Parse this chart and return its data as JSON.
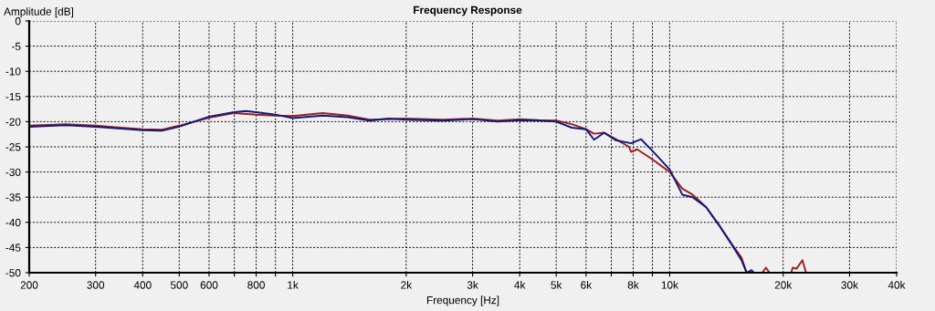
{
  "chart_data": {
    "type": "line",
    "title": "Frequency Response",
    "xlabel": "Frequency [Hz]",
    "ylabel": "Amplitude [dB]",
    "log": "x",
    "grid": true,
    "legend": false,
    "line_style": "solid",
    "marker": "none",
    "xlim": [
      200,
      40000
    ],
    "ylim": [
      -50,
      0
    ],
    "xticks": [
      200,
      300,
      400,
      500,
      600,
      {
        "value": 700,
        "label": null
      },
      800,
      {
        "value": 900,
        "label": null
      },
      {
        "value": 1000,
        "label": "1k"
      },
      {
        "value": 2000,
        "label": "2k"
      },
      {
        "value": 3000,
        "label": "3k"
      },
      {
        "value": 4000,
        "label": "4k"
      },
      {
        "value": 5000,
        "label": "5k"
      },
      {
        "value": 6000,
        "label": "6k"
      },
      {
        "value": 7000,
        "label": null
      },
      {
        "value": 8000,
        "label": "8k"
      },
      {
        "value": 9000,
        "label": null
      },
      {
        "value": 10000,
        "label": "10k"
      },
      {
        "value": 20000,
        "label": "20k"
      },
      {
        "value": 30000,
        "label": "30k"
      },
      {
        "value": 40000,
        "label": "40k"
      }
    ],
    "yticks": [
      0,
      -5,
      -10,
      -15,
      -20,
      -25,
      -30,
      -35,
      -40,
      -45,
      -50
    ],
    "series": [
      {
        "color": "#9b2020",
        "x": [
          200,
          250,
          300,
          350,
          400,
          450,
          500,
          600,
          700,
          800,
          900,
          1000,
          1200,
          1400,
          1600,
          2000,
          2500,
          3000,
          3500,
          4000,
          4500,
          5000,
          5500,
          6000,
          6300,
          6700,
          7200,
          7800,
          7900,
          8200,
          9000,
          10000,
          10800,
          11500,
          12500,
          13500,
          14500,
          15500,
          16000,
          16500,
          17600,
          18000,
          18400,
          20500,
          21000,
          21200,
          21700,
          22500,
          23000
        ],
        "values": [
          -20.8,
          -20.5,
          -20.8,
          -21.2,
          -21.5,
          -21.6,
          -20.8,
          -19.2,
          -18.3,
          -18.6,
          -18.8,
          -18.9,
          -18.3,
          -18.8,
          -19.6,
          -19.4,
          -19.6,
          -19.4,
          -19.8,
          -19.5,
          -19.7,
          -19.8,
          -20.5,
          -21.5,
          -22.4,
          -22.2,
          -23.5,
          -25,
          -26,
          -25.5,
          -27.5,
          -30,
          -33.3,
          -34.5,
          -37,
          -40.5,
          -44,
          -47,
          -50,
          null,
          -50,
          -49,
          -50,
          null,
          -50,
          -49,
          -49.2,
          -47.5,
          -50
        ]
      },
      {
        "color": "#101a7a",
        "x": [
          200,
          250,
          300,
          350,
          400,
          450,
          500,
          600,
          700,
          750,
          800,
          900,
          1000,
          1200,
          1400,
          1600,
          1800,
          2000,
          2500,
          3000,
          3500,
          4000,
          4500,
          5000,
          5500,
          6000,
          6300,
          6700,
          7200,
          7900,
          8400,
          9000,
          10000,
          10800,
          11500,
          12500,
          13500,
          14500,
          15500,
          16000,
          16500,
          16700
        ],
        "values": [
          -21,
          -20.7,
          -21,
          -21.4,
          -21.7,
          -21.8,
          -21,
          -19,
          -18.1,
          -17.9,
          -18.1,
          -18.6,
          -19.3,
          -18.8,
          -19.1,
          -19.8,
          -19.4,
          -19.6,
          -19.8,
          -19.5,
          -20,
          -19.7,
          -19.8,
          -20,
          -21.2,
          -21.5,
          -23.6,
          -22.2,
          -23.7,
          -24.3,
          -23.5,
          -25.8,
          -29.5,
          -34.5,
          -35,
          -37,
          -40.5,
          -44,
          -47.5,
          -50,
          -49.5,
          -50
        ]
      }
    ]
  }
}
